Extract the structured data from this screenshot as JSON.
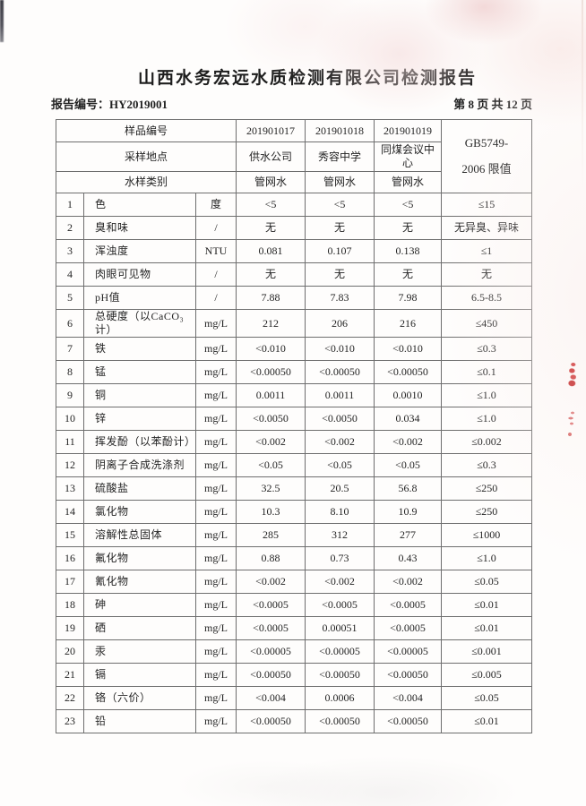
{
  "document": {
    "title": "山西水务宏远水质检测有限公司检测报告",
    "report_no_label": "报告编号：",
    "report_no": "HY2019001",
    "page_indicator": "第 8 页 共 12 页"
  },
  "table": {
    "header": {
      "row1_label": "样品编号",
      "sample_ids": [
        "201901017",
        "201901018",
        "201901019"
      ],
      "row2_label": "采样地点",
      "locations": [
        "供水公司",
        "秀容中学",
        "同煤会议中心"
      ],
      "row3_label": "水样类别",
      "sample_types": [
        "管网水",
        "管网水",
        "管网水"
      ],
      "limit_header_line1": "GB5749-",
      "limit_header_line2": "2006 限值"
    },
    "rows": [
      {
        "no": "1",
        "name": "色",
        "unit": "度",
        "v1": "<5",
        "v2": "<5",
        "v3": "<5",
        "limit": "≤15"
      },
      {
        "no": "2",
        "name": "臭和味",
        "unit": "/",
        "v1": "无",
        "v2": "无",
        "v3": "无",
        "limit": "无异臭、异味"
      },
      {
        "no": "3",
        "name": "浑浊度",
        "unit": "NTU",
        "v1": "0.081",
        "v2": "0.107",
        "v3": "0.138",
        "limit": "≤1"
      },
      {
        "no": "4",
        "name": "肉眼可见物",
        "unit": "/",
        "v1": "无",
        "v2": "无",
        "v3": "无",
        "limit": "无"
      },
      {
        "no": "5",
        "name": "pH值",
        "unit": "/",
        "v1": "7.88",
        "v2": "7.83",
        "v3": "7.98",
        "limit": "6.5-8.5"
      },
      {
        "no": "6",
        "name": "总硬度（以CaCO₃计）",
        "unit": "mg/L",
        "v1": "212",
        "v2": "206",
        "v3": "216",
        "limit": "≤450"
      },
      {
        "no": "7",
        "name": "铁",
        "unit": "mg/L",
        "v1": "<0.010",
        "v2": "<0.010",
        "v3": "<0.010",
        "limit": "≤0.3"
      },
      {
        "no": "8",
        "name": "锰",
        "unit": "mg/L",
        "v1": "<0.00050",
        "v2": "<0.00050",
        "v3": "<0.00050",
        "limit": "≤0.1"
      },
      {
        "no": "9",
        "name": "铜",
        "unit": "mg/L",
        "v1": "0.0011",
        "v2": "0.0011",
        "v3": "0.0010",
        "limit": "≤1.0"
      },
      {
        "no": "10",
        "name": "锌",
        "unit": "mg/L",
        "v1": "<0.0050",
        "v2": "<0.0050",
        "v3": "0.034",
        "limit": "≤1.0"
      },
      {
        "no": "11",
        "name": "挥发酚（以苯酚计）",
        "unit": "mg/L",
        "v1": "<0.002",
        "v2": "<0.002",
        "v3": "<0.002",
        "limit": "≤0.002"
      },
      {
        "no": "12",
        "name": "阴离子合成洗涤剂",
        "unit": "mg/L",
        "v1": "<0.05",
        "v2": "<0.05",
        "v3": "<0.05",
        "limit": "≤0.3"
      },
      {
        "no": "13",
        "name": "硫酸盐",
        "unit": "mg/L",
        "v1": "32.5",
        "v2": "20.5",
        "v3": "56.8",
        "limit": "≤250"
      },
      {
        "no": "14",
        "name": "氯化物",
        "unit": "mg/L",
        "v1": "10.3",
        "v2": "8.10",
        "v3": "10.9",
        "limit": "≤250"
      },
      {
        "no": "15",
        "name": "溶解性总固体",
        "unit": "mg/L",
        "v1": "285",
        "v2": "312",
        "v3": "277",
        "limit": "≤1000"
      },
      {
        "no": "16",
        "name": "氟化物",
        "unit": "mg/L",
        "v1": "0.88",
        "v2": "0.73",
        "v3": "0.43",
        "limit": "≤1.0"
      },
      {
        "no": "17",
        "name": "氰化物",
        "unit": "mg/L",
        "v1": "<0.002",
        "v2": "<0.002",
        "v3": "<0.002",
        "limit": "≤0.05"
      },
      {
        "no": "18",
        "name": "砷",
        "unit": "mg/L",
        "v1": "<0.0005",
        "v2": "<0.0005",
        "v3": "<0.0005",
        "limit": "≤0.01"
      },
      {
        "no": "19",
        "name": "硒",
        "unit": "mg/L",
        "v1": "<0.0005",
        "v2": "0.00051",
        "v3": "<0.0005",
        "limit": "≤0.01"
      },
      {
        "no": "20",
        "name": "汞",
        "unit": "mg/L",
        "v1": "<0.00005",
        "v2": "<0.00005",
        "v3": "<0.00005",
        "limit": "≤0.001"
      },
      {
        "no": "21",
        "name": "镉",
        "unit": "mg/L",
        "v1": "<0.00050",
        "v2": "<0.00050",
        "v3": "<0.00050",
        "limit": "≤0.005"
      },
      {
        "no": "22",
        "name": "铬（六价）",
        "unit": "mg/L",
        "v1": "<0.004",
        "v2": "0.0006",
        "v3": "<0.004",
        "limit": "≤0.05"
      },
      {
        "no": "23",
        "name": "铅",
        "unit": "mg/L",
        "v1": "<0.00050",
        "v2": "<0.00050",
        "v3": "<0.00050",
        "limit": "≤0.01"
      }
    ]
  },
  "artifacts": {
    "stamp_color": "#d04545",
    "corner_mark_color": "#4a4a52"
  }
}
